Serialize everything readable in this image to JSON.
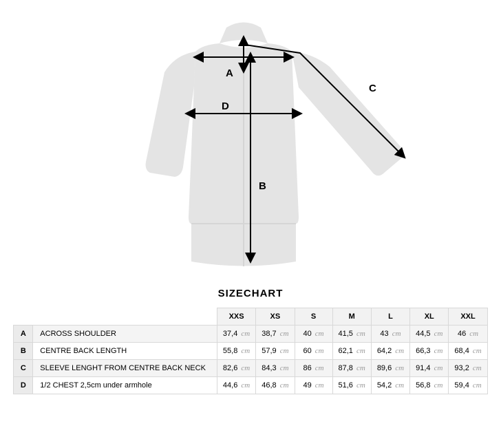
{
  "title": "SIZECHART",
  "unit_label": "cm",
  "colors": {
    "silhouette": "#e4e4e4",
    "border": "#d8d8d8",
    "header_bg": "#f2f2f2",
    "letter_bg": "#ebebeb",
    "row_odd_bg": "#f4f4f4",
    "row_even_bg": "#ffffff",
    "unit_text": "#9a9a9a",
    "arrow": "#000000"
  },
  "diagram": {
    "labels": {
      "A": "A",
      "B": "B",
      "C": "C",
      "D": "D"
    }
  },
  "sizes": [
    "XXS",
    "XS",
    "S",
    "M",
    "L",
    "XL",
    "XXL"
  ],
  "rows": [
    {
      "letter": "A",
      "name": "ACROSS SHOULDER",
      "values": [
        "37,4",
        "38,7",
        "40",
        "41,5",
        "43",
        "44,5",
        "46"
      ]
    },
    {
      "letter": "B",
      "name": "CENTRE BACK LENGTH",
      "values": [
        "55,8",
        "57,9",
        "60",
        "62,1",
        "64,2",
        "66,3",
        "68,4"
      ]
    },
    {
      "letter": "C",
      "name": "SLEEVE LENGHT FROM CENTRE BACK NECK",
      "values": [
        "82,6",
        "84,3",
        "86",
        "87,8",
        "89,6",
        "91,4",
        "93,2"
      ]
    },
    {
      "letter": "D",
      "name": "1/2 CHEST 2,5cm under armhole",
      "values": [
        "44,6",
        "46,8",
        "49",
        "51,6",
        "54,2",
        "56,8",
        "59,4"
      ]
    }
  ]
}
